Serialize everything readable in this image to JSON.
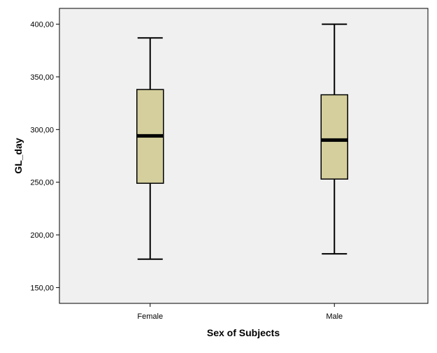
{
  "chart_data": {
    "type": "boxplot",
    "xlabel": "Sex of Subjects",
    "ylabel": "GL_day",
    "ylim": [
      135,
      415
    ],
    "yticks": [
      150,
      200,
      250,
      300,
      350,
      400
    ],
    "ytick_labels": [
      "150,00",
      "200,00",
      "250,00",
      "300,00",
      "350,00",
      "400,00"
    ],
    "categories": [
      "Female",
      "Male"
    ],
    "boxes": [
      {
        "category": "Female",
        "min": 177,
        "q1": 249,
        "median": 294,
        "q3": 338,
        "max": 387
      },
      {
        "category": "Male",
        "min": 182,
        "q1": 253,
        "median": 290,
        "q3": 333,
        "max": 400
      }
    ],
    "grid": false,
    "colors": {
      "plot_background": "#f0f0f0",
      "box_fill": "#d4cf9c",
      "stroke": "#000000"
    }
  }
}
